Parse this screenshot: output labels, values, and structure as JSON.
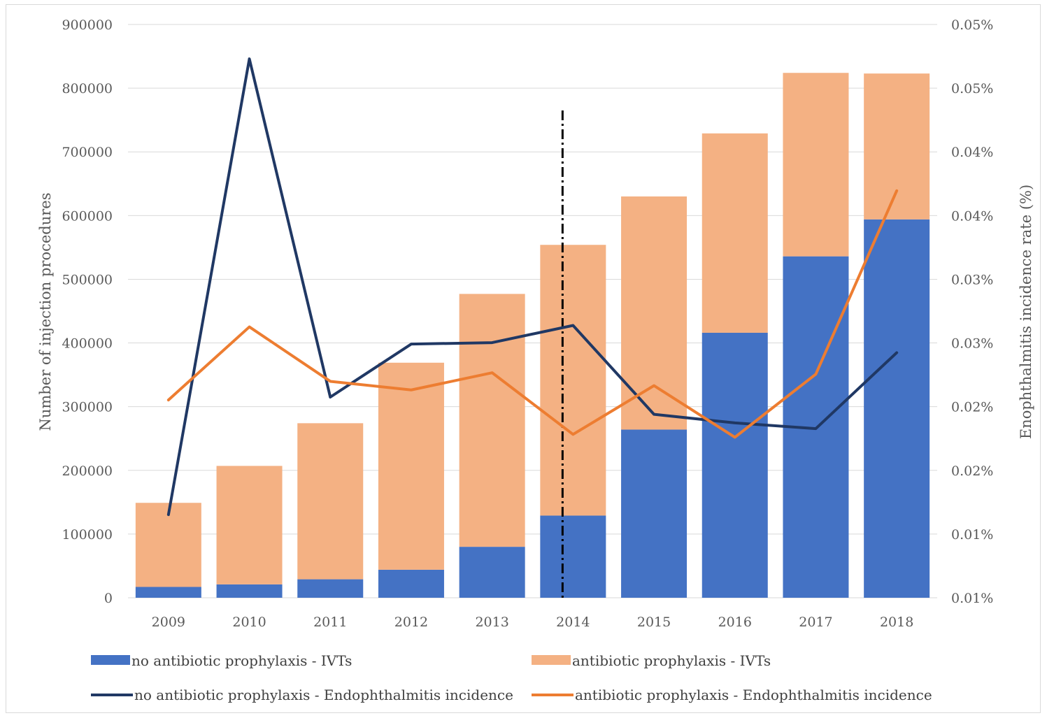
{
  "chart_data": {
    "type": "bar",
    "stacked": true,
    "title": "",
    "xlabel": "",
    "ylabel": "Number of injection procedures",
    "y2label": "Enophthalmitis incidence rate (%)",
    "categories": [
      "2009",
      "2010",
      "2011",
      "2012",
      "2013",
      "2014",
      "2015",
      "2016",
      "2017",
      "2018"
    ],
    "ylim": [
      0,
      900000
    ],
    "y_ticks": [
      0,
      100000,
      200000,
      300000,
      400000,
      500000,
      600000,
      700000,
      800000,
      900000
    ],
    "y_tick_labels": [
      "0",
      "100000",
      "200000",
      "300000",
      "400000",
      "500000",
      "600000",
      "700000",
      "800000",
      "900000"
    ],
    "y2lim": [
      0,
      0.04
    ],
    "y2_tick_labels": [
      "0.01%",
      "0.01%",
      "0.02%",
      "0.02%",
      "0.03%",
      "0.03%",
      "0.04%",
      "0.04%",
      "0.05%",
      "0.05%"
    ],
    "grid": true,
    "legend_position": "bottom",
    "intervention_year": "2014",
    "series": [
      {
        "name": "no antibiotic prophylaxis - IVTs",
        "type": "bar",
        "axis": "left",
        "color": "#4472c4",
        "values": [
          17000,
          21000,
          29000,
          44000,
          80000,
          129000,
          264000,
          416000,
          536000,
          594000
        ]
      },
      {
        "name": "antibiotic prophylaxis - IVTs",
        "type": "bar",
        "axis": "left",
        "color": "#f4b183",
        "values": [
          132000,
          186000,
          245000,
          325000,
          397000,
          425000,
          366000,
          313000,
          288000,
          229000
        ]
      },
      {
        "name": "no antibiotic prophylaxis - Endophthalmitis incidence",
        "type": "line",
        "axis": "right",
        "color": "#203864",
        "values": [
          0.0058,
          0.0376,
          0.014,
          0.0177,
          0.0178,
          0.019,
          0.0128,
          0.0122,
          0.0118,
          0.0171
        ]
      },
      {
        "name": "antibiotic prophylaxis - Endophthalmitis incidence",
        "type": "line",
        "axis": "right",
        "color": "#ed7d31",
        "values": [
          0.0138,
          0.0189,
          0.0151,
          0.0145,
          0.0157,
          0.0114,
          0.0148,
          0.0112,
          0.0156,
          0.0284
        ]
      }
    ]
  }
}
